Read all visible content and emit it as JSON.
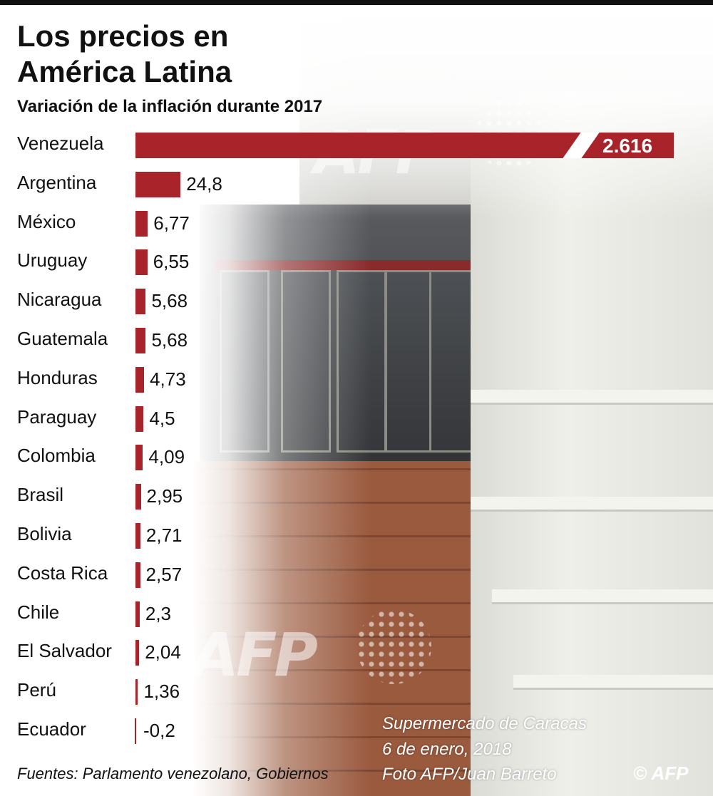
{
  "title_line1": "Los precios en",
  "title_line2": "América Latina",
  "subtitle": "Variación de la inflación durante 2017",
  "source": "Fuentes: Parlamento venezolano, Gobiernos",
  "caption": {
    "line1": "Supermercado de Caracas",
    "line2": "6 de enero, 2018",
    "credit": "Foto AFP/Juan Barreto"
  },
  "logo": "© AFP",
  "colors": {
    "bar": "#a8232a",
    "text": "#111111"
  },
  "chart_data": {
    "type": "bar",
    "orientation": "horizontal",
    "title": "Variación de la inflación durante 2017",
    "axis_break": true,
    "categories": [
      "Venezuela",
      "Argentina",
      "México",
      "Uruguay",
      "Nicaragua",
      "Guatemala",
      "Honduras",
      "Paraguay",
      "Colombia",
      "Brasil",
      "Bolivia",
      "Costa Rica",
      "Chile",
      "El Salvador",
      "Perú",
      "Ecuador"
    ],
    "values": [
      2616,
      24.8,
      6.77,
      6.55,
      5.68,
      5.68,
      4.73,
      4.5,
      4.09,
      2.95,
      2.71,
      2.57,
      2.3,
      2.04,
      1.36,
      -0.2
    ],
    "labels": [
      "2.616",
      "24,8",
      "6,77",
      "6,55",
      "5,68",
      "5,68",
      "4,73",
      "4,5",
      "4,09",
      "2,95",
      "2,71",
      "2,57",
      "2,3",
      "2,04",
      "1,36",
      "-0,2"
    ]
  }
}
